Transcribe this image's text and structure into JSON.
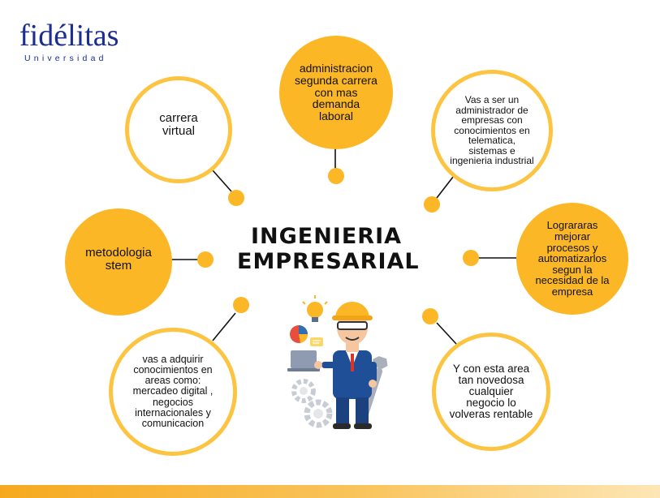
{
  "logo": {
    "word": "fidélitas",
    "sub": "Universidad"
  },
  "title": {
    "line1": "INGENIERIA",
    "line2": "EMPRESARIAL"
  },
  "nodes": {
    "top": "administracion segunda carrera con mas demanda laboral",
    "top_left": "carrera virtual",
    "top_right": "Vas a ser un administrador de empresas con conocimientos en telematica, sistemas e ingenieria industrial",
    "left": "metodologia stem",
    "right": "Lograraras mejorar procesos y automatizarlos segun la necesidad de la empresa",
    "bottom_left": "vas a adquirir conocimientos en areas como: mercadeo digital , negocios internacionales y comunicacion",
    "bottom_right": "Y con esta area tan novedosa cualquier negocio lo volveras rentable"
  },
  "colors": {
    "accent": "#fbb726",
    "outline": "#fcc441",
    "brand": "#1b2d8f"
  }
}
